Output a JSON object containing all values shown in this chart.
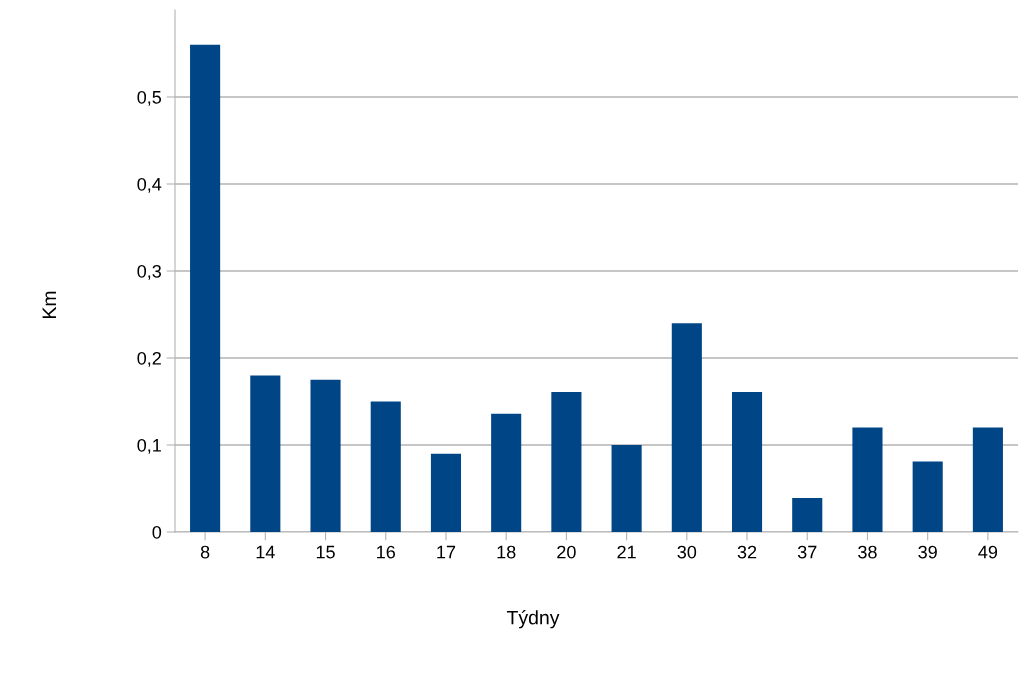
{
  "chart_data": {
    "type": "bar",
    "xlabel": "Týdny",
    "ylabel": "Km",
    "categories": [
      "8",
      "14",
      "15",
      "16",
      "17",
      "18",
      "20",
      "21",
      "30",
      "32",
      "37",
      "38",
      "39",
      "49"
    ],
    "values": [
      0.56,
      0.18,
      0.175,
      0.15,
      0.09,
      0.136,
      0.161,
      0.1,
      0.24,
      0.161,
      0.039,
      0.12,
      0.081,
      0.12
    ],
    "color": "#004586",
    "ylim": [
      0,
      0.6
    ],
    "yticks": [
      {
        "value": 0,
        "label": "0"
      },
      {
        "value": 0.1,
        "label": "0,1"
      },
      {
        "value": 0.2,
        "label": "0,2"
      },
      {
        "value": 0.3,
        "label": "0,3"
      },
      {
        "value": 0.4,
        "label": "0,4"
      },
      {
        "value": 0.5,
        "label": "0,5"
      }
    ],
    "grid": "y",
    "legend": false
  }
}
